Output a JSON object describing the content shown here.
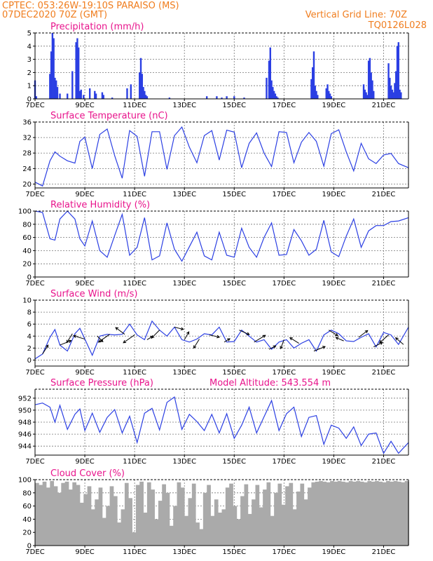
{
  "header": {
    "line1": "CPTEC:   053:26W-19:10S   PARAISO  (MS)",
    "line2": "07DEC2020  70Z  (GMT)",
    "right1": "Vertical Grid Line: 70Z",
    "right2": "TQ0126L028"
  },
  "colors": {
    "header": "#f07d1e",
    "title": "#e8148c",
    "series": "#2b3fe3",
    "cloud": "#aaaaaa",
    "arrow": "#000000"
  },
  "x_axis": {
    "day_range": [
      7,
      22
    ],
    "tick_days": [
      7,
      9,
      11,
      13,
      15,
      17,
      19,
      21
    ],
    "tick_labels": [
      "7DEC",
      "9DEC",
      "11DEC",
      "13DEC",
      "15DEC",
      "17DEC",
      "19DEC",
      "21DEC"
    ]
  },
  "chart_data": [
    {
      "type": "bar",
      "id": "precip",
      "title": "Precipitation (mm/h)",
      "ylim": [
        0,
        5
      ],
      "yticks": [
        0,
        1,
        2,
        3,
        4,
        5
      ],
      "x": [
        7.0,
        7.05,
        7.6,
        7.65,
        7.7,
        7.75,
        7.8,
        7.85,
        7.9,
        8.0,
        8.3,
        8.5,
        8.65,
        8.7,
        8.75,
        8.8,
        8.85,
        8.95,
        9.2,
        9.4,
        9.45,
        9.7,
        9.75,
        10.1,
        10.7,
        10.85,
        11.2,
        11.25,
        11.3,
        11.35,
        11.4,
        11.45,
        11.5,
        12.4,
        13.9,
        14.3,
        14.5,
        14.7,
        15.0,
        15.4,
        16.3,
        16.4,
        16.45,
        16.5,
        16.55,
        16.6,
        16.65,
        16.7,
        16.75,
        18.1,
        18.15,
        18.2,
        18.25,
        18.3,
        18.35,
        18.7,
        18.75,
        18.8,
        18.85,
        18.9,
        20.2,
        20.25,
        20.3,
        20.35,
        20.4,
        20.45,
        20.5,
        20.55,
        20.6,
        21.2,
        21.25,
        21.3,
        21.35,
        21.4,
        21.45,
        21.5,
        21.55,
        21.6,
        21.65,
        21.7
      ],
      "values": [
        1.4,
        0.2,
        1.9,
        3.6,
        5.0,
        4.6,
        1.6,
        1.4,
        0.9,
        0.4,
        0.4,
        2.1,
        4.3,
        4.6,
        3.9,
        0.6,
        0.7,
        0.3,
        0.8,
        0.6,
        0.4,
        0.5,
        0.3,
        0.1,
        0.8,
        1.1,
        2.0,
        3.1,
        1.9,
        0.9,
        0.6,
        0.3,
        0.2,
        0.1,
        0.2,
        0.2,
        0.1,
        0.2,
        0.2,
        0.1,
        1.6,
        2.9,
        3.9,
        1.4,
        0.9,
        0.6,
        0.4,
        0.2,
        0.1,
        1.5,
        2.4,
        3.6,
        1.0,
        0.6,
        0.3,
        0.8,
        1.1,
        0.6,
        0.4,
        0.2,
        1.1,
        0.7,
        0.5,
        0.3,
        2.9,
        3.1,
        2.0,
        1.4,
        0.6,
        2.7,
        1.6,
        1.0,
        0.7,
        0.5,
        1.2,
        2.1,
        4.0,
        4.3,
        0.7,
        0.5
      ]
    },
    {
      "type": "line",
      "id": "temp",
      "title": "Surface Temperature (nC)",
      "ylim": [
        19,
        36
      ],
      "yticks": [
        20,
        24,
        28,
        32,
        36
      ],
      "x": [
        7.0,
        7.3,
        7.6,
        7.8,
        8.0,
        8.3,
        8.6,
        8.8,
        9.0,
        9.3,
        9.6,
        9.9,
        10.2,
        10.5,
        10.8,
        11.1,
        11.4,
        11.7,
        12.0,
        12.3,
        12.6,
        12.9,
        13.2,
        13.5,
        13.8,
        14.1,
        14.4,
        14.7,
        15.0,
        15.3,
        15.6,
        15.9,
        16.2,
        16.5,
        16.8,
        17.1,
        17.4,
        17.7,
        18.0,
        18.3,
        18.6,
        18.9,
        19.2,
        19.5,
        19.8,
        20.1,
        20.4,
        20.7,
        21.0,
        21.3,
        21.6,
        22.0
      ],
      "values": [
        20.5,
        19.5,
        26.0,
        28.3,
        27.2,
        26.0,
        25.4,
        31.0,
        32.1,
        24.0,
        32.8,
        34.2,
        27.3,
        21.5,
        33.8,
        32.3,
        22.0,
        33.5,
        33.5,
        23.8,
        32.5,
        34.7,
        29.5,
        25.5,
        32.5,
        33.8,
        26.2,
        33.9,
        33.4,
        24.2,
        30.5,
        33.2,
        28.0,
        24.5,
        33.5,
        33.3,
        25.5,
        30.8,
        33.3,
        31.0,
        24.6,
        33.0,
        34.0,
        28.3,
        23.4,
        30.5,
        26.5,
        25.3,
        27.5,
        27.9,
        25.3,
        24.2
      ]
    },
    {
      "type": "line",
      "id": "rh",
      "title": "Relative Humidity (%)",
      "ylim": [
        0,
        100
      ],
      "yticks": [
        0,
        20,
        40,
        60,
        80,
        100
      ],
      "x": [
        7.0,
        7.3,
        7.6,
        7.8,
        8.0,
        8.3,
        8.6,
        8.8,
        9.0,
        9.3,
        9.6,
        9.9,
        10.2,
        10.5,
        10.8,
        11.1,
        11.4,
        11.7,
        12.0,
        12.3,
        12.6,
        12.9,
        13.2,
        13.5,
        13.8,
        14.1,
        14.4,
        14.7,
        15.0,
        15.3,
        15.6,
        15.9,
        16.2,
        16.5,
        16.8,
        17.1,
        17.4,
        17.7,
        18.0,
        18.3,
        18.6,
        18.9,
        19.2,
        19.5,
        19.8,
        20.1,
        20.4,
        20.7,
        21.0,
        21.3,
        21.6,
        22.0
      ],
      "values": [
        100,
        98,
        58,
        56,
        88,
        100,
        88,
        58,
        47,
        85,
        40,
        30,
        63,
        95,
        33,
        45,
        90,
        26,
        32,
        82,
        42,
        24,
        46,
        68,
        32,
        26,
        68,
        33,
        30,
        74,
        45,
        30,
        60,
        82,
        33,
        34,
        72,
        55,
        33,
        42,
        86,
        38,
        31,
        62,
        88,
        45,
        70,
        78,
        78,
        84,
        85,
        90
      ]
    },
    {
      "type": "line",
      "id": "wind",
      "title": "Surface Wind (m/s)",
      "ylim": [
        -1,
        10
      ],
      "yticks": [
        0,
        2,
        4,
        6,
        8,
        10
      ],
      "x": [
        7.0,
        7.3,
        7.6,
        7.8,
        8.0,
        8.3,
        8.6,
        8.8,
        9.0,
        9.3,
        9.6,
        9.9,
        10.2,
        10.5,
        10.8,
        11.1,
        11.4,
        11.7,
        12.0,
        12.3,
        12.6,
        12.9,
        13.2,
        13.5,
        13.8,
        14.1,
        14.4,
        14.7,
        15.0,
        15.3,
        15.6,
        15.9,
        16.2,
        16.5,
        16.8,
        17.1,
        17.4,
        17.7,
        18.0,
        18.3,
        18.6,
        18.9,
        19.2,
        19.5,
        19.8,
        20.1,
        20.4,
        20.7,
        21.0,
        21.3,
        21.6,
        22.0
      ],
      "values": [
        0.2,
        1.0,
        3.8,
        5.1,
        2.5,
        1.5,
        4.4,
        5.3,
        3.5,
        0.8,
        4.0,
        4.3,
        4.2,
        4.3,
        6.0,
        4.2,
        3.4,
        6.5,
        5.0,
        4.0,
        5.5,
        3.4,
        3.0,
        3.5,
        4.4,
        4.2,
        5.5,
        3.0,
        3.1,
        5.0,
        4.0,
        3.0,
        3.4,
        1.8,
        3.0,
        3.4,
        2.0,
        2.8,
        3.4,
        1.5,
        4.2,
        5.0,
        4.4,
        3.2,
        3.1,
        3.8,
        4.4,
        2.2,
        4.6,
        4.2,
        2.6,
        5.5
      ],
      "arrows": {
        "x": [
          7.3,
          8.0,
          8.5,
          9.0,
          9.5,
          10.0,
          10.6,
          11.0,
          11.5,
          12.0,
          12.6,
          13.0,
          13.6,
          14.0,
          14.6,
          15.2,
          15.8,
          16.4,
          17.0,
          17.6,
          18.2,
          18.8,
          19.4,
          20.0,
          20.6,
          21.2,
          21.8
        ],
        "u": [
          0.5,
          1.0,
          -0.5,
          -1.0,
          0.5,
          -1.0,
          -0.8,
          -1.0,
          0.5,
          -0.7,
          0.8,
          0.4,
          -0.5,
          0.9,
          0.5,
          0.9,
          1.0,
          0.6,
          -0.3,
          -0.8,
          1.0,
          0.8,
          -0.7,
          0.8,
          0.8,
          -0.8,
          -0.7
        ],
        "v": [
          0.8,
          0.4,
          -0.8,
          0.3,
          -0.5,
          -0.7,
          0.6,
          -0.7,
          0.3,
          -0.7,
          -0.2,
          0.7,
          -0.8,
          -0.2,
          0.3,
          -0.4,
          0.6,
          0.3,
          -0.8,
          0.5,
          0.4,
          -0.5,
          0.3,
          0.6,
          0.4,
          -0.7,
          0.6
        ]
      }
    },
    {
      "type": "line",
      "id": "pressure",
      "title": "Surface Pressure (hPa)",
      "subtitle": "Model Altitude:  543.554  m",
      "ylim": [
        942.5,
        953.5
      ],
      "yticks": [
        944,
        946,
        948,
        950,
        952
      ],
      "x": [
        7.0,
        7.3,
        7.6,
        7.8,
        8.0,
        8.3,
        8.6,
        8.8,
        9.0,
        9.3,
        9.6,
        9.9,
        10.2,
        10.5,
        10.8,
        11.1,
        11.4,
        11.7,
        12.0,
        12.3,
        12.6,
        12.9,
        13.2,
        13.5,
        13.8,
        14.1,
        14.4,
        14.7,
        15.0,
        15.3,
        15.6,
        15.9,
        16.2,
        16.5,
        16.8,
        17.1,
        17.4,
        17.7,
        18.0,
        18.3,
        18.6,
        18.9,
        19.2,
        19.5,
        19.8,
        20.1,
        20.4,
        20.7,
        21.0,
        21.3,
        21.6,
        22.0
      ],
      "values": [
        950.9,
        951.2,
        950.5,
        948.0,
        950.8,
        946.8,
        949.3,
        950.2,
        946.6,
        949.5,
        946.3,
        948.8,
        950.1,
        946.2,
        949.0,
        944.6,
        949.5,
        950.3,
        946.7,
        951.3,
        952.2,
        946.8,
        949.3,
        948.1,
        946.6,
        949.3,
        946.2,
        949.4,
        945.3,
        947.5,
        950.5,
        946.2,
        948.9,
        951.6,
        946.6,
        949.4,
        950.5,
        945.6,
        948.8,
        949.1,
        944.3,
        947.5,
        947.0,
        945.3,
        947.2,
        944.1,
        946.0,
        946.2,
        942.8,
        944.8,
        942.8,
        944.6
      ]
    },
    {
      "type": "area",
      "id": "cloud",
      "title": "Cloud Cover (%)",
      "ylim": [
        0,
        100
      ],
      "yticks": [
        0,
        20,
        40,
        60,
        80,
        100
      ],
      "x": [
        7.0,
        7.15,
        7.3,
        7.45,
        7.6,
        7.75,
        7.9,
        8.05,
        8.2,
        8.35,
        8.5,
        8.65,
        8.8,
        8.95,
        9.1,
        9.25,
        9.4,
        9.55,
        9.7,
        9.85,
        10.0,
        10.15,
        10.3,
        10.45,
        10.6,
        10.75,
        10.9,
        11.05,
        11.2,
        11.35,
        11.5,
        11.65,
        11.8,
        11.95,
        12.1,
        12.25,
        12.4,
        12.55,
        12.7,
        12.85,
        13.0,
        13.15,
        13.3,
        13.45,
        13.6,
        13.75,
        13.9,
        14.05,
        14.2,
        14.35,
        14.5,
        14.65,
        14.8,
        14.95,
        15.1,
        15.25,
        15.4,
        15.55,
        15.7,
        15.85,
        16.0,
        16.15,
        16.3,
        16.45,
        16.6,
        16.75,
        16.9,
        17.05,
        17.2,
        17.35,
        17.5,
        17.65,
        17.8,
        17.95,
        18.1,
        18.25,
        18.4,
        18.55,
        18.7,
        18.85,
        19.0,
        19.15,
        19.3,
        19.45,
        19.6,
        19.75,
        19.9,
        20.05,
        20.2,
        20.35,
        20.5,
        20.65,
        20.8,
        20.95,
        21.1,
        21.25,
        21.4,
        21.55,
        21.7,
        21.85,
        22.0
      ],
      "values": [
        95,
        92,
        97,
        88,
        98,
        90,
        80,
        95,
        97,
        85,
        96,
        92,
        65,
        78,
        90,
        55,
        70,
        88,
        42,
        60,
        90,
        75,
        35,
        55,
        95,
        72,
        20,
        92,
        97,
        50,
        96,
        85,
        40,
        68,
        93,
        80,
        30,
        60,
        96,
        88,
        45,
        72,
        94,
        35,
        25,
        80,
        92,
        45,
        70,
        50,
        55,
        88,
        94,
        60,
        40,
        75,
        93,
        48,
        70,
        92,
        58,
        85,
        96,
        45,
        80,
        94,
        62,
        90,
        95,
        55,
        82,
        94,
        70,
        88,
        96,
        97,
        98,
        97,
        96,
        98,
        97,
        98,
        97,
        96,
        98,
        97,
        98,
        97,
        96,
        98,
        97,
        98,
        97,
        96,
        98,
        97,
        98,
        97,
        96,
        98,
        97
      ]
    }
  ]
}
